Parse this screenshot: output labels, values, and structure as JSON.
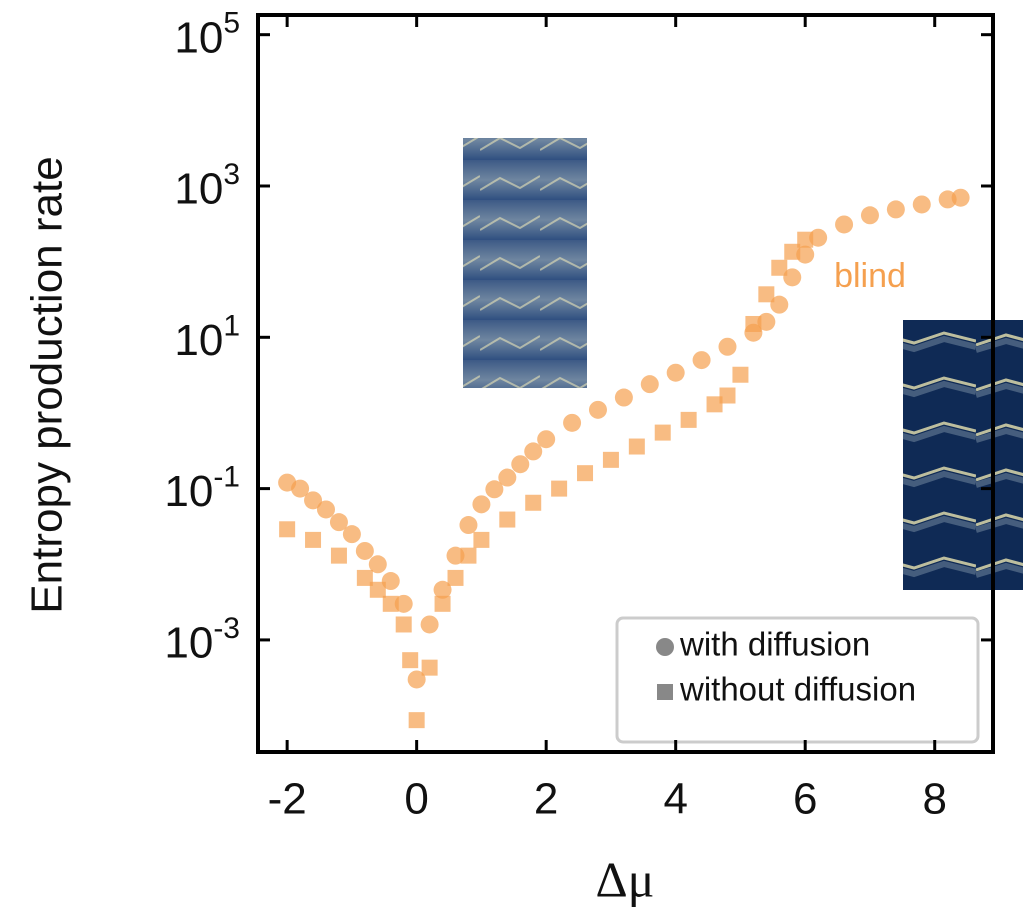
{
  "chart_data": {
    "type": "scatter",
    "x_label": "Δμ",
    "y_label": "Entropy production rate",
    "annotation": "blind",
    "log_y": true,
    "legend": "lower right",
    "xlim": [
      -2.45,
      8.9
    ],
    "xticks": [
      -2,
      0,
      2,
      4,
      6,
      8
    ],
    "ylim": [
      3.3e-05,
      182000
    ],
    "yticks": [
      {
        "value": 0.001,
        "label": "10^-3"
      },
      {
        "value": 0.1,
        "label": "10^-1"
      },
      {
        "value": 10,
        "label": "10^1"
      },
      {
        "value": 1000,
        "label": "10^3"
      },
      {
        "value": 100000,
        "label": "10^5"
      }
    ],
    "series": [
      {
        "name": "with diffusion",
        "color": "#f5a04f",
        "marker": "circle",
        "x": [
          -2,
          -1.8,
          -1.6,
          -1.4,
          -1.2,
          -1.0,
          -0.8,
          -0.6,
          -0.4,
          -0.2,
          0.0,
          0.2,
          0.4,
          0.6,
          0.8,
          1.0,
          1.2,
          1.4,
          1.6,
          1.8,
          2.0,
          2.4,
          2.8,
          3.2,
          3.6,
          4.0,
          4.4,
          4.8,
          5.2,
          5.4,
          5.6,
          5.8,
          6.0,
          6.2,
          6.6,
          7.0,
          7.4,
          7.8,
          8.2,
          8.4
        ],
        "values": [
          0.12,
          0.1,
          0.07,
          0.053,
          0.036,
          0.025,
          0.015,
          0.01,
          0.006,
          0.003,
          0.0003,
          0.0016,
          0.0046,
          0.013,
          0.033,
          0.062,
          0.098,
          0.14,
          0.21,
          0.31,
          0.45,
          0.74,
          1.1,
          1.6,
          2.4,
          3.4,
          5.0,
          7.5,
          11.5,
          16,
          27,
          62,
          124,
          207,
          310,
          410,
          490,
          570,
          665,
          700
        ]
      },
      {
        "name": "without diffusion",
        "color": "#f5a04f",
        "marker": "square",
        "x": [
          -2,
          -1.6,
          -1.2,
          -0.8,
          -0.6,
          -0.4,
          -0.2,
          -0.1,
          0.0,
          0.2,
          0.4,
          0.6,
          0.8,
          1.0,
          1.4,
          1.8,
          2.2,
          2.6,
          3.0,
          3.4,
          3.8,
          4.2,
          4.6,
          4.8,
          5.0,
          5.2,
          5.4,
          5.6,
          5.8,
          6.0
        ],
        "values": [
          0.029,
          0.021,
          0.013,
          0.0066,
          0.0046,
          0.003,
          0.0016,
          0.00054,
          8.7e-05,
          0.00043,
          0.003,
          0.0066,
          0.013,
          0.021,
          0.039,
          0.065,
          0.1,
          0.16,
          0.24,
          0.36,
          0.55,
          0.81,
          1.3,
          1.7,
          3.2,
          15,
          37,
          83,
          135,
          195
        ]
      }
    ]
  }
}
